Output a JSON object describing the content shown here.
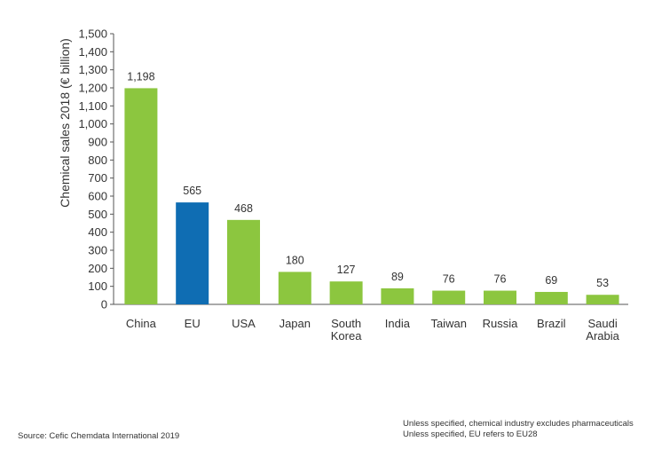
{
  "chart_data": {
    "type": "bar",
    "categories": [
      "China",
      "EU",
      "USA",
      "Japan",
      "South Korea",
      "India",
      "Taiwan",
      "Russia",
      "Brazil",
      "Saudi Arabia"
    ],
    "category_lines": [
      [
        "China"
      ],
      [
        "EU"
      ],
      [
        "USA"
      ],
      [
        "Japan"
      ],
      [
        "South",
        "Korea"
      ],
      [
        "India"
      ],
      [
        "Taiwan"
      ],
      [
        "Russia"
      ],
      [
        "Brazil"
      ],
      [
        "Saudi",
        "Arabia"
      ]
    ],
    "values": [
      1198,
      565,
      468,
      180,
      127,
      89,
      76,
      76,
      69,
      53
    ],
    "value_labels": [
      "1,198",
      "565",
      "468",
      "180",
      "127",
      "89",
      "76",
      "76",
      "69",
      "53"
    ],
    "ylabel": "Chemical sales 2018 (€ billion)",
    "ylim": [
      0,
      1500
    ],
    "yticks": [
      0,
      100,
      200,
      300,
      400,
      500,
      600,
      700,
      800,
      900,
      1000,
      1100,
      1200,
      1300,
      1400,
      1500
    ],
    "ytick_labels": [
      "0",
      "100",
      "200",
      "300",
      "400",
      "500",
      "600",
      "700",
      "800",
      "900",
      "1,000",
      "1,100",
      "1,200",
      "1,300",
      "1,400",
      "1,500"
    ],
    "grid": false,
    "colors": {
      "default_bar": "#8cc63f",
      "highlight_bar": "#0f6db3",
      "highlight_category": "EU"
    }
  },
  "footer": {
    "source": "Source: Cefic Chemdata International 2019",
    "notes": [
      "Unless specified, chemical industry excludes pharmaceuticals",
      "Unless specified, EU refers to EU28"
    ]
  }
}
